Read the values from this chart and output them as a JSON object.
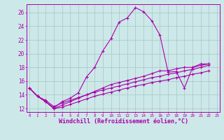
{
  "background_color": "#cde8e8",
  "grid_color": "#aacccc",
  "line_color": "#aa00aa",
  "marker": "+",
  "xlabel": "Windchill (Refroidissement éolien,°C)",
  "xlabel_fontsize": 6,
  "ytick_labels": [
    "12",
    "14",
    "16",
    "18",
    "20",
    "22",
    "24",
    "26"
  ],
  "ytick_values": [
    12,
    14,
    16,
    18,
    20,
    22,
    24,
    26
  ],
  "xtick_values": [
    0,
    1,
    2,
    3,
    4,
    5,
    6,
    7,
    8,
    9,
    10,
    11,
    12,
    13,
    14,
    15,
    16,
    17,
    18,
    19,
    20,
    21,
    22,
    23
  ],
  "xlim": [
    -0.3,
    23.3
  ],
  "ylim": [
    11.5,
    27.2
  ],
  "series": [
    [
      15.0,
      13.8,
      13.0,
      12.1,
      13.0,
      13.5,
      14.3,
      16.6,
      18.0,
      20.4,
      22.2,
      24.6,
      25.2,
      26.7,
      26.1,
      24.8,
      22.7,
      17.3,
      17.4,
      15.0,
      18.0,
      18.5,
      18.5
    ],
    [
      15.0,
      13.8,
      13.0,
      12.0,
      12.5,
      13.0,
      13.5,
      14.0,
      14.5,
      15.0,
      15.5,
      15.8,
      16.1,
      16.4,
      16.7,
      17.1,
      17.5,
      17.5,
      17.8,
      18.0,
      18.0,
      18.3,
      18.5
    ],
    [
      15.0,
      13.8,
      13.2,
      12.3,
      12.8,
      13.2,
      13.6,
      14.0,
      14.4,
      14.7,
      15.0,
      15.3,
      15.6,
      15.9,
      16.2,
      16.5,
      16.7,
      17.0,
      17.2,
      17.5,
      17.7,
      18.0,
      18.3
    ],
    [
      15.0,
      13.8,
      13.0,
      12.0,
      12.2,
      12.6,
      13.0,
      13.4,
      13.8,
      14.1,
      14.4,
      14.7,
      15.0,
      15.3,
      15.5,
      15.8,
      16.0,
      16.2,
      16.5,
      16.7,
      17.0,
      17.2,
      17.5
    ]
  ],
  "series_x": [
    [
      0,
      1,
      2,
      3,
      4,
      5,
      6,
      7,
      8,
      9,
      10,
      11,
      12,
      13,
      14,
      15,
      16,
      17,
      18,
      19,
      20,
      21,
      22
    ],
    [
      0,
      1,
      2,
      3,
      4,
      5,
      6,
      7,
      8,
      9,
      10,
      11,
      12,
      13,
      14,
      15,
      16,
      17,
      18,
      19,
      20,
      21,
      22
    ],
    [
      0,
      1,
      2,
      3,
      4,
      5,
      6,
      7,
      8,
      9,
      10,
      11,
      12,
      13,
      14,
      15,
      16,
      17,
      18,
      19,
      20,
      21,
      22
    ],
    [
      0,
      1,
      2,
      3,
      4,
      5,
      6,
      7,
      8,
      9,
      10,
      11,
      12,
      13,
      14,
      15,
      16,
      17,
      18,
      19,
      20,
      21,
      22
    ]
  ]
}
